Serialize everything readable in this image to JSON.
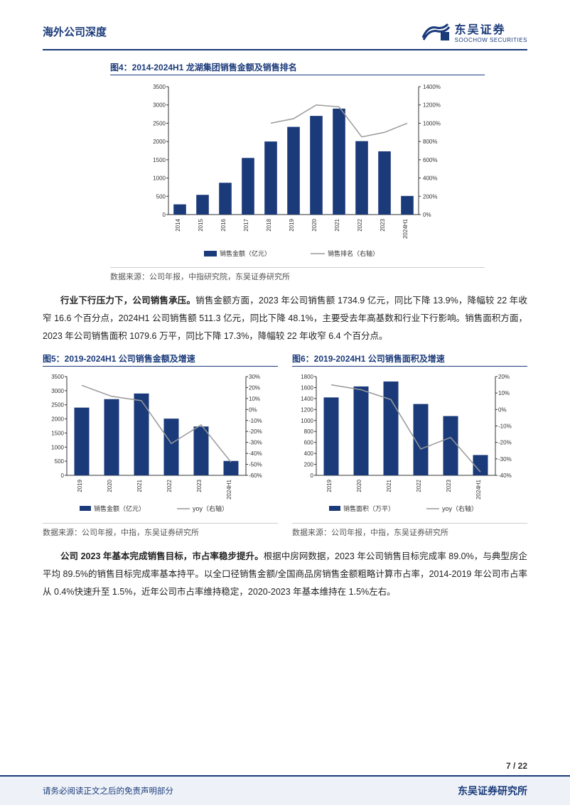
{
  "header": {
    "left": "海外公司深度",
    "logo_cn": "东吴证券",
    "logo_en": "SOOCHOW SECURITIES"
  },
  "fig4": {
    "title": "图4：2014-2024H1 龙湖集团销售金额及销售排名",
    "source": "数据来源：公司年报，中指研究院，东吴证券研究所",
    "type": "bar+line",
    "categories": [
      "2014",
      "2015",
      "2016",
      "2017",
      "2018",
      "2019",
      "2020",
      "2021",
      "2022",
      "2023",
      "2024H1"
    ],
    "bar_values": [
      280,
      540,
      870,
      1550,
      2000,
      2400,
      2700,
      2900,
      2010,
      1730,
      510
    ],
    "line_values": [
      null,
      null,
      null,
      null,
      1000,
      1050,
      1200,
      1180,
      850,
      900,
      1000
    ],
    "y1_max": 3500,
    "y1_step": 500,
    "y2_max": 1400,
    "y2_step": 200,
    "bar_color": "#1a3a7a",
    "line_color": "#999999",
    "bg_color": "#ffffff",
    "grid_color": "#dddddd",
    "label_fontsize": 9,
    "tick_fontsize": 8,
    "legend": {
      "bar": "销售金额（亿元）",
      "line": "销售排名（右轴）"
    }
  },
  "para1": {
    "bold": "行业下行压力下，公司销售承压。",
    "text": "销售金额方面，2023 年公司销售额 1734.9 亿元，同比下降 13.9%，降幅较 22 年收窄 16.6 个百分点，2024H1 公司销售额 511.3 亿元，同比下降 48.1%，主要受去年高基数和行业下行影响。销售面积方面，2023 年公司销售面积 1079.6 万平，同比下降 17.3%，降幅较 22 年收窄 6.4 个百分点。"
  },
  "fig5": {
    "title": "图5：2019-2024H1 公司销售金额及增速",
    "source": "数据来源：公司年报，中指，东吴证券研究所",
    "type": "bar+line",
    "categories": [
      "2019",
      "2020",
      "2021",
      "2022",
      "2023",
      "2024H1"
    ],
    "bar_values": [
      2400,
      2700,
      2900,
      2010,
      1730,
      510
    ],
    "line_values": [
      22,
      12,
      8,
      -31,
      -14,
      -48
    ],
    "y1_max": 3500,
    "y1_step": 500,
    "y2_min": -60,
    "y2_max": 30,
    "y2_step": 10,
    "bar_color": "#1a3a7a",
    "line_color": "#999999",
    "legend": {
      "bar": "销售金额（亿元）",
      "line": "yoy（右轴）"
    }
  },
  "fig6": {
    "title": "图6：2019-2024H1 公司销售面积及增速",
    "source": "数据来源：公司年报，中指，东吴证券研究所",
    "type": "bar+line",
    "categories": [
      "2019",
      "2020",
      "2021",
      "2022",
      "2023",
      "2024H1"
    ],
    "bar_values": [
      1420,
      1620,
      1710,
      1300,
      1080,
      370
    ],
    "line_values": [
      15,
      12,
      6,
      -24,
      -17,
      -38
    ],
    "y1_max": 1800,
    "y1_step": 200,
    "y2_min": -40,
    "y2_max": 20,
    "y2_step": 10,
    "bar_color": "#1a3a7a",
    "line_color": "#999999",
    "legend": {
      "bar": "销售面积（万平）",
      "line": "yoy（右轴）"
    }
  },
  "para2": {
    "bold": "公司 2023 年基本完成销售目标，市占率稳步提升。",
    "text": "根据中房网数据，2023 年公司销售目标完成率 89.0%，与典型房企平均 89.5%的销售目标完成率基本持平。以全口径销售金额/全国商品房销售金额粗略计算市占率，2014-2019 年公司市占率从 0.4%快速升至 1.5%，近年公司市占率维持稳定，2020-2023 年基本维持在 1.5%左右。"
  },
  "footer": {
    "page": "7 / 22",
    "left": "请务必阅读正文之后的免责声明部分",
    "right": "东吴证券研究所"
  }
}
